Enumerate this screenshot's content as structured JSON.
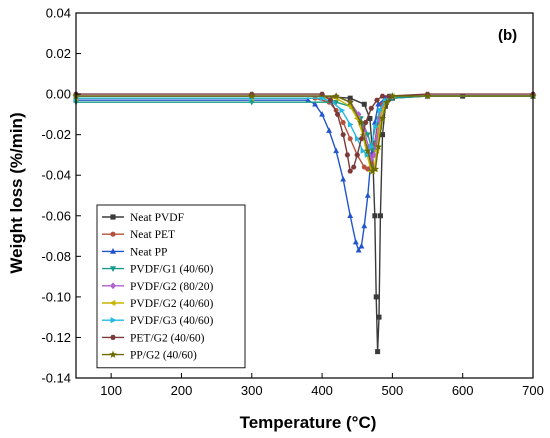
{
  "chart_data": {
    "type": "line",
    "panel_label": "(b)",
    "xlabel": "Temperature (°C)",
    "ylabel": "Weight loss (%/min)",
    "xlim": [
      50,
      700
    ],
    "ylim": [
      -0.14,
      0.04
    ],
    "xticks": [
      100,
      200,
      300,
      400,
      500,
      600,
      700
    ],
    "yticks": [
      0.04,
      0.02,
      0.0,
      -0.02,
      -0.04,
      -0.06,
      -0.08,
      -0.1,
      -0.12,
      -0.14
    ],
    "xtick_labels": [
      "100",
      "200",
      "300",
      "400",
      "500",
      "600",
      "700"
    ],
    "ytick_labels": [
      "0.04",
      "0.02",
      "0.00",
      "-0.02",
      "-0.04",
      "-0.06",
      "-0.08",
      "-0.10",
      "-0.12",
      "-0.14"
    ],
    "grid": false,
    "legend_position": "bottom-left",
    "series": [
      {
        "name": "Neat PVDF",
        "color": "#3a3a3a",
        "marker": "square",
        "x": [
          50,
          300,
          400,
          440,
          460,
          468,
          472,
          475,
          477,
          479,
          481,
          483,
          486,
          490,
          500,
          550,
          600,
          700
        ],
        "y": [
          -0.001,
          -0.001,
          -0.001,
          -0.002,
          -0.005,
          -0.012,
          -0.03,
          -0.06,
          -0.1,
          -0.127,
          -0.11,
          -0.06,
          -0.02,
          -0.006,
          -0.002,
          -0.001,
          -0.001,
          -0.001
        ]
      },
      {
        "name": "Neat PET",
        "color": "#b5503a",
        "marker": "circle",
        "x": [
          50,
          300,
          390,
          410,
          420,
          430,
          440,
          450,
          460,
          465,
          470,
          475,
          480,
          485,
          490,
          500,
          550,
          700
        ],
        "y": [
          -0.002,
          -0.002,
          -0.002,
          -0.004,
          -0.008,
          -0.014,
          -0.022,
          -0.03,
          -0.036,
          -0.037,
          -0.034,
          -0.024,
          -0.012,
          -0.005,
          -0.002,
          -0.001,
          -0.001,
          -0.001
        ]
      },
      {
        "name": "Neat PP",
        "color": "#2255cc",
        "marker": "triangle",
        "x": [
          50,
          300,
          380,
          390,
          400,
          410,
          420,
          430,
          440,
          448,
          452,
          456,
          460,
          465,
          470,
          475,
          480,
          490,
          500,
          550,
          700
        ],
        "y": [
          -0.003,
          -0.003,
          -0.003,
          -0.005,
          -0.01,
          -0.018,
          -0.028,
          -0.042,
          -0.06,
          -0.073,
          -0.077,
          -0.075,
          -0.065,
          -0.05,
          -0.03,
          -0.014,
          -0.005,
          -0.002,
          -0.001,
          -0.001,
          -0.001
        ]
      },
      {
        "name": "PVDF/G1 (40/60)",
        "color": "#1a9a8a",
        "marker": "down-triangle",
        "x": [
          50,
          300,
          420,
          440,
          455,
          465,
          470,
          474,
          478,
          482,
          486,
          490,
          500,
          550,
          700
        ],
        "y": [
          -0.004,
          -0.004,
          -0.004,
          -0.006,
          -0.012,
          -0.02,
          -0.026,
          -0.028,
          -0.024,
          -0.015,
          -0.008,
          -0.004,
          -0.002,
          -0.001,
          -0.001
        ]
      },
      {
        "name": "PVDF/G2 (80/20)",
        "color": "#b060d0",
        "marker": "diamond",
        "x": [
          50,
          300,
          420,
          440,
          452,
          460,
          466,
          470,
          474,
          478,
          482,
          486,
          492,
          500,
          550,
          700
        ],
        "y": [
          -0.001,
          -0.001,
          -0.001,
          -0.004,
          -0.01,
          -0.018,
          -0.026,
          -0.032,
          -0.03,
          -0.022,
          -0.013,
          -0.007,
          -0.003,
          -0.001,
          -0.001,
          -0.001
        ]
      },
      {
        "name": "PVDF/G2 (40/60)",
        "color": "#c8b400",
        "marker": "left-triangle",
        "x": [
          50,
          300,
          420,
          440,
          450,
          458,
          464,
          470,
          474,
          478,
          482,
          486,
          492,
          500,
          550,
          700
        ],
        "y": [
          -0.002,
          -0.002,
          -0.002,
          -0.006,
          -0.012,
          -0.02,
          -0.03,
          -0.038,
          -0.037,
          -0.028,
          -0.016,
          -0.008,
          -0.003,
          -0.001,
          -0.001,
          -0.001
        ]
      },
      {
        "name": "PVDF/G3 (40/60)",
        "color": "#22b8e0",
        "marker": "right-triangle",
        "x": [
          50,
          300,
          400,
          415,
          428,
          440,
          450,
          458,
          464,
          470,
          476,
          482,
          490,
          500,
          550,
          700
        ],
        "y": [
          -0.002,
          -0.002,
          -0.002,
          -0.004,
          -0.008,
          -0.015,
          -0.022,
          -0.028,
          -0.03,
          -0.026,
          -0.016,
          -0.008,
          -0.003,
          -0.001,
          -0.001,
          -0.001
        ]
      },
      {
        "name": "PET/G2 (40/60)",
        "color": "#7a3a3a",
        "marker": "hexagon",
        "x": [
          50,
          300,
          400,
          412,
          422,
          430,
          436,
          440,
          445,
          450,
          456,
          462,
          470,
          478,
          486,
          495,
          550,
          700
        ],
        "y": [
          0.0,
          0.0,
          0.0,
          -0.003,
          -0.01,
          -0.02,
          -0.03,
          -0.038,
          -0.036,
          -0.03,
          -0.022,
          -0.014,
          -0.007,
          -0.003,
          -0.001,
          -0.001,
          0.0,
          0.0
        ]
      },
      {
        "name": "PP/G2 (40/60)",
        "color": "#6b6b00",
        "marker": "star",
        "x": [
          50,
          300,
          420,
          440,
          455,
          465,
          472,
          476,
          480,
          486,
          492,
          500,
          550,
          700
        ],
        "y": [
          -0.001,
          -0.001,
          -0.001,
          -0.004,
          -0.014,
          -0.028,
          -0.038,
          -0.037,
          -0.026,
          -0.012,
          -0.004,
          -0.001,
          -0.001,
          -0.001
        ]
      }
    ]
  }
}
